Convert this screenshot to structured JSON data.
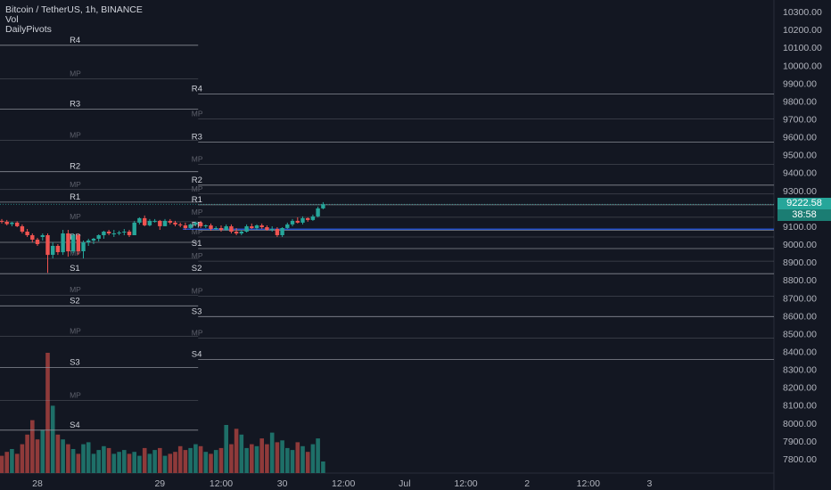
{
  "legend": {
    "symbol": "Bitcoin / TetherUS, 1h, BINANCE",
    "indicator1": "Vol",
    "indicator2": "DailyPivots"
  },
  "price_tag": {
    "price": "9222.58",
    "countdown": "38:58"
  },
  "colors": {
    "background": "#131722",
    "up": "#26a69a",
    "down": "#ef5350",
    "volume_up": "#1e6f68",
    "volume_down": "#8f3a3a",
    "pivot_line": "#9598a1",
    "current_price_line": "#26a69a",
    "blue_line": "#2962ff"
  },
  "chart_data": {
    "type": "candlestick",
    "symbol": "Bitcoin / TetherUS",
    "interval": "1h",
    "exchange": "BINANCE",
    "ylim": [
      7720,
      10360
    ],
    "y_ticks": [
      7800,
      7900,
      8000,
      8100,
      8200,
      8300,
      8400,
      8500,
      8600,
      8700,
      8800,
      8900,
      9000,
      9100,
      9200,
      9300,
      9400,
      9500,
      9600,
      9700,
      9800,
      9900,
      10000,
      10100,
      10200,
      10300
    ],
    "y_tick_labels": [
      "7800.00",
      "7900.00",
      "8000.00",
      "8100.00",
      "8200.00",
      "8300.00",
      "8400.00",
      "8500.00",
      "8600.00",
      "8700.00",
      "8800.00",
      "8900.00",
      "9000.00",
      "9100.00",
      "9200.00",
      "9300.00",
      "9400.00",
      "9500.00",
      "9600.00",
      "9700.00",
      "9800.00",
      "9900.00",
      "10000.00",
      "10100.00",
      "10200.00",
      "10300.00"
    ],
    "x_ticks": [
      {
        "label": "28",
        "t": 7
      },
      {
        "label": "29",
        "t": 31
      },
      {
        "label": "12:00",
        "t": 43
      },
      {
        "label": "30",
        "t": 55
      },
      {
        "label": "12:00",
        "t": 67
      },
      {
        "label": "Jul",
        "t": 79
      },
      {
        "label": "12:00",
        "t": 91
      },
      {
        "label": "2",
        "t": 103
      },
      {
        "label": "12:00",
        "t": 115
      },
      {
        "label": "3",
        "t": 127
      }
    ],
    "candles_ohlc": [
      [
        9130,
        9140,
        9115,
        9125
      ],
      [
        9125,
        9135,
        9105,
        9112
      ],
      [
        9112,
        9125,
        9100,
        9120
      ],
      [
        9120,
        9128,
        9095,
        9100
      ],
      [
        9100,
        9110,
        9060,
        9070
      ],
      [
        9070,
        9085,
        9040,
        9050
      ],
      [
        9050,
        9060,
        9010,
        9025
      ],
      [
        9025,
        9035,
        8990,
        9000
      ],
      [
        9040,
        9060,
        9020,
        9050
      ],
      [
        9050,
        9060,
        8840,
        8940
      ],
      [
        8940,
        9010,
        8920,
        8990
      ],
      [
        8990,
        9000,
        8940,
        8955
      ],
      [
        8955,
        9080,
        8940,
        9060
      ],
      [
        9060,
        9080,
        8930,
        8960
      ],
      [
        8960,
        9060,
        8950,
        9050
      ],
      [
        9050,
        9060,
        8940,
        8960
      ],
      [
        8960,
        9020,
        8920,
        9010
      ],
      [
        9010,
        9030,
        8990,
        9020
      ],
      [
        9020,
        9035,
        9000,
        9030
      ],
      [
        9030,
        9055,
        9015,
        9050
      ],
      [
        9050,
        9075,
        9030,
        9070
      ],
      [
        9070,
        9080,
        9050,
        9060
      ],
      [
        9060,
        9080,
        9040,
        9060
      ],
      [
        9060,
        9075,
        9050,
        9065
      ],
      [
        9065,
        9085,
        9050,
        9070
      ],
      [
        9070,
        9080,
        9040,
        9050
      ],
      [
        9050,
        9130,
        9050,
        9120
      ],
      [
        9120,
        9150,
        9110,
        9145
      ],
      [
        9145,
        9160,
        9100,
        9105
      ],
      [
        9105,
        9140,
        9100,
        9130
      ],
      [
        9130,
        9140,
        9120,
        9130
      ],
      [
        9130,
        9135,
        9080,
        9100
      ],
      [
        9100,
        9140,
        9100,
        9130
      ],
      [
        9130,
        9140,
        9110,
        9120
      ],
      [
        9120,
        9130,
        9100,
        9110
      ],
      [
        9110,
        9120,
        9095,
        9105
      ],
      [
        9105,
        9120,
        9080,
        9090
      ],
      [
        9090,
        9115,
        9085,
        9110
      ],
      [
        9110,
        9125,
        9100,
        9120
      ],
      [
        9120,
        9130,
        9090,
        9100
      ],
      [
        9100,
        9110,
        9090,
        9105
      ],
      [
        9105,
        9115,
        9075,
        9085
      ],
      [
        9085,
        9100,
        9080,
        9090
      ],
      [
        9090,
        9105,
        9070,
        9080
      ],
      [
        9080,
        9110,
        9075,
        9100
      ],
      [
        9100,
        9110,
        9060,
        9070
      ],
      [
        9070,
        9090,
        9050,
        9060
      ],
      [
        9060,
        9080,
        9050,
        9070
      ],
      [
        9070,
        9110,
        9065,
        9100
      ],
      [
        9100,
        9115,
        9085,
        9090
      ],
      [
        9090,
        9110,
        9080,
        9105
      ],
      [
        9105,
        9115,
        9085,
        9095
      ],
      [
        9095,
        9105,
        9075,
        9080
      ],
      [
        9080,
        9100,
        9070,
        9085
      ],
      [
        9085,
        9095,
        9040,
        9050
      ],
      [
        9050,
        9095,
        9040,
        9090
      ],
      [
        9090,
        9120,
        9085,
        9110
      ],
      [
        9110,
        9140,
        9100,
        9130
      ],
      [
        9130,
        9150,
        9115,
        9120
      ],
      [
        9120,
        9155,
        9110,
        9145
      ],
      [
        9145,
        9150,
        9125,
        9135
      ],
      [
        9135,
        9165,
        9130,
        9155
      ],
      [
        9155,
        9210,
        9150,
        9200
      ],
      [
        9200,
        9235,
        9195,
        9223
      ]
    ],
    "volume": [
      18,
      22,
      25,
      20,
      30,
      40,
      55,
      35,
      45,
      125,
      70,
      40,
      35,
      30,
      25,
      20,
      30,
      32,
      20,
      24,
      28,
      26,
      20,
      22,
      24,
      20,
      22,
      18,
      26,
      20,
      24,
      26,
      18,
      20,
      22,
      28,
      24,
      26,
      30,
      28,
      22,
      20,
      24,
      26,
      50,
      30,
      46,
      40,
      26,
      30,
      28,
      36,
      30,
      42,
      32,
      34,
      26,
      24,
      32,
      28,
      22,
      30,
      36,
      12
    ],
    "pivot_levels_day1": [
      {
        "label": "R4",
        "value": 10112
      },
      {
        "label": "MP",
        "value": 9925
      },
      {
        "label": "R3",
        "value": 9755
      },
      {
        "label": "MP",
        "value": 9580
      },
      {
        "label": "R2",
        "value": 9405
      },
      {
        "label": "MP",
        "value": 9305
      },
      {
        "label": "R1",
        "value": 9235
      },
      {
        "label": "MP",
        "value": 9125
      },
      {
        "label": "PP",
        "value": 9010
      },
      {
        "label": "MP",
        "value": 8920
      },
      {
        "label": "S1",
        "value": 8835
      },
      {
        "label": "MP",
        "value": 8715
      },
      {
        "label": "S2",
        "value": 8655
      },
      {
        "label": "MP",
        "value": 8485
      },
      {
        "label": "S3",
        "value": 8310
      },
      {
        "label": "MP",
        "value": 8125
      },
      {
        "label": "S4",
        "value": 7960
      }
    ],
    "pivot_levels_day2": [
      {
        "label": "R4",
        "value": 9840
      },
      {
        "label": "MP",
        "value": 9700
      },
      {
        "label": "R3",
        "value": 9570
      },
      {
        "label": "MP",
        "value": 9445
      },
      {
        "label": "R2",
        "value": 9330
      },
      {
        "label": "MP",
        "value": 9280
      },
      {
        "label": "R1",
        "value": 9220
      },
      {
        "label": "MP",
        "value": 9150
      },
      {
        "label": "PP",
        "value": 9078
      },
      {
        "label": "MP",
        "value": 9040
      },
      {
        "label": "S1",
        "value": 8975
      },
      {
        "label": "MP",
        "value": 8905
      },
      {
        "label": "S2",
        "value": 8835
      },
      {
        "label": "MP",
        "value": 8710
      },
      {
        "label": "S3",
        "value": 8595
      },
      {
        "label": "MP",
        "value": 8475
      },
      {
        "label": "S4",
        "value": 8355
      }
    ],
    "current_price": 9222.58,
    "blue_level": 9084
  }
}
